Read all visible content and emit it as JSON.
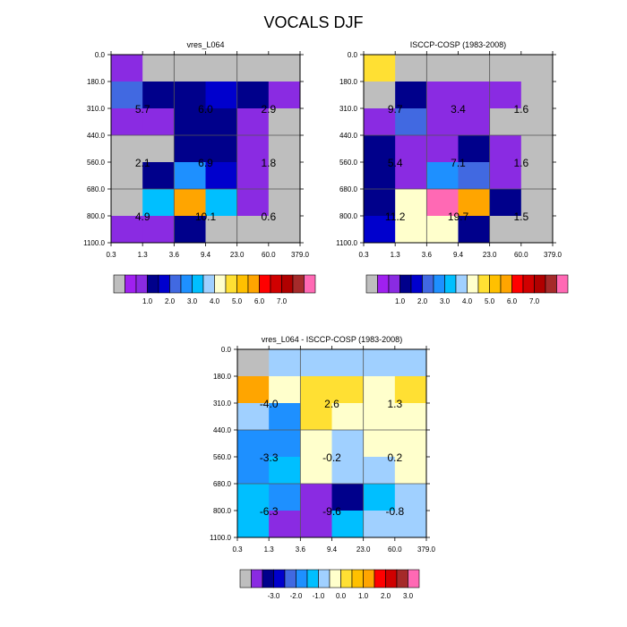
{
  "main_title": "VOCALS DJF",
  "y_ticks": [
    "0.0",
    "180.0",
    "310.0",
    "440.0",
    "560.0",
    "680.0",
    "800.0",
    "1100.0"
  ],
  "x_ticks": [
    "0.3",
    "1.3",
    "3.6",
    "9.4",
    "23.0",
    "60.0",
    "379.0"
  ],
  "palettes": {
    "main": [
      "#bebebe",
      "#a020f0",
      "#8a2be2",
      "#00008b",
      "#0000cd",
      "#4169e1",
      "#1e90ff",
      "#00bfff",
      "#a0d0ff",
      "#ffffcc",
      "#ffe033",
      "#ffc000",
      "#ffa500",
      "#ff0000",
      "#d00000",
      "#b00000",
      "#a52a2a",
      "#ff69b4"
    ],
    "diff": [
      "#bebebe",
      "#8a2be2",
      "#00008b",
      "#0000cd",
      "#4169e1",
      "#1e90ff",
      "#00bfff",
      "#a0d0ff",
      "#ffffcc",
      "#ffe033",
      "#ffc000",
      "#ffa500",
      "#ff0000",
      "#d00000",
      "#a52a2a",
      "#ff69b4"
    ]
  },
  "colorbars": [
    {
      "labels": [
        "1.0",
        "2.0",
        "3.0",
        "4.0",
        "5.0",
        "6.0",
        "7.0"
      ]
    },
    {
      "labels": [
        "1.0",
        "2.0",
        "3.0",
        "4.0",
        "5.0",
        "6.0",
        "7.0"
      ]
    },
    {
      "labels": [
        "-3.0",
        "-2.0",
        "-1.0",
        "0.0",
        "1.0",
        "2.0",
        "3.0"
      ]
    }
  ],
  "chart_data": [
    {
      "type": "heatmap",
      "title": "vres_L064",
      "xlabel": "",
      "ylabel": "",
      "x_edges": [
        "0.3",
        "1.3",
        "3.6",
        "9.4",
        "23.0",
        "60.0",
        "379.0"
      ],
      "y_edges": [
        "0.0",
        "180.0",
        "310.0",
        "440.0",
        "560.0",
        "680.0",
        "800.0",
        "1100.0"
      ],
      "cells": [
        [
          "#8a2be2",
          "#bebebe",
          "#bebebe",
          "#bebebe",
          "#bebebe",
          "#bebebe"
        ],
        [
          "#4169e1",
          "#00008b",
          "#00008b",
          "#0000cd",
          "#00008b",
          "#8a2be2"
        ],
        [
          "#8a2be2",
          "#8a2be2",
          "#00008b",
          "#00008b",
          "#8a2be2",
          "#bebebe"
        ],
        [
          "#bebebe",
          "#bebebe",
          "#00008b",
          "#00008b",
          "#8a2be2",
          "#bebebe"
        ],
        [
          "#bebebe",
          "#00008b",
          "#1e90ff",
          "#0000cd",
          "#8a2be2",
          "#bebebe"
        ],
        [
          "#bebebe",
          "#00bfff",
          "#ffa500",
          "#00bfff",
          "#8a2be2",
          "#bebebe"
        ],
        [
          "#8a2be2",
          "#8a2be2",
          "#00008b",
          "#bebebe",
          "#bebebe",
          "#bebebe"
        ]
      ],
      "box_values": [
        {
          "xbin": 0,
          "ybin": 0,
          "value": 5.7
        },
        {
          "xbin": 1,
          "ybin": 0,
          "value": 6.0
        },
        {
          "xbin": 2,
          "ybin": 0,
          "value": 2.9
        },
        {
          "xbin": 0,
          "ybin": 1,
          "value": 2.1
        },
        {
          "xbin": 1,
          "ybin": 1,
          "value": 6.9
        },
        {
          "xbin": 2,
          "ybin": 1,
          "value": 1.8
        },
        {
          "xbin": 0,
          "ybin": 2,
          "value": 4.9
        },
        {
          "xbin": 1,
          "ybin": 2,
          "value": 10.1
        },
        {
          "xbin": 2,
          "ybin": 2,
          "value": 0.6
        }
      ]
    },
    {
      "type": "heatmap",
      "title": "ISCCP-COSP (1983-2008)",
      "xlabel": "",
      "ylabel": "",
      "x_edges": [
        "0.3",
        "1.3",
        "3.6",
        "9.4",
        "23.0",
        "60.0",
        "379.0"
      ],
      "y_edges": [
        "0.0",
        "180.0",
        "310.0",
        "440.0",
        "560.0",
        "680.0",
        "800.0",
        "1100.0"
      ],
      "cells": [
        [
          "#ffe033",
          "#bebebe",
          "#bebebe",
          "#bebebe",
          "#bebebe",
          "#bebebe"
        ],
        [
          "#bebebe",
          "#00008b",
          "#8a2be2",
          "#8a2be2",
          "#8a2be2",
          "#bebebe"
        ],
        [
          "#8a2be2",
          "#4169e1",
          "#8a2be2",
          "#8a2be2",
          "#bebebe",
          "#bebebe"
        ],
        [
          "#00008b",
          "#8a2be2",
          "#8a2be2",
          "#00008b",
          "#8a2be2",
          "#bebebe"
        ],
        [
          "#00008b",
          "#8a2be2",
          "#1e90ff",
          "#4169e1",
          "#8a2be2",
          "#bebebe"
        ],
        [
          "#00008b",
          "#ffffcc",
          "#ff69b4",
          "#ffa500",
          "#00008b",
          "#bebebe"
        ],
        [
          "#0000cd",
          "#ffffcc",
          "#ffffcc",
          "#00008b",
          "#bebebe",
          "#bebebe"
        ]
      ],
      "box_values": [
        {
          "xbin": 0,
          "ybin": 0,
          "value": 9.7
        },
        {
          "xbin": 1,
          "ybin": 0,
          "value": 3.4
        },
        {
          "xbin": 2,
          "ybin": 0,
          "value": 1.6
        },
        {
          "xbin": 0,
          "ybin": 1,
          "value": 5.4
        },
        {
          "xbin": 1,
          "ybin": 1,
          "value": 7.1
        },
        {
          "xbin": 2,
          "ybin": 1,
          "value": 1.6
        },
        {
          "xbin": 0,
          "ybin": 2,
          "value": 11.2
        },
        {
          "xbin": 1,
          "ybin": 2,
          "value": 19.7
        },
        {
          "xbin": 2,
          "ybin": 2,
          "value": 1.5
        }
      ]
    },
    {
      "type": "heatmap",
      "title": "vres_L064 - ISCCP-COSP (1983-2008)",
      "xlabel": "",
      "ylabel": "",
      "x_edges": [
        "0.3",
        "1.3",
        "3.6",
        "9.4",
        "23.0",
        "60.0",
        "379.0"
      ],
      "y_edges": [
        "0.0",
        "180.0",
        "310.0",
        "440.0",
        "560.0",
        "680.0",
        "800.0",
        "1100.0"
      ],
      "cells": [
        [
          "#bebebe",
          "#a0d0ff",
          "#a0d0ff",
          "#a0d0ff",
          "#a0d0ff",
          "#a0d0ff"
        ],
        [
          "#ffa500",
          "#ffffcc",
          "#ffe033",
          "#ffe033",
          "#ffffcc",
          "#ffe033"
        ],
        [
          "#a0d0ff",
          "#1e90ff",
          "#ffe033",
          "#ffffcc",
          "#ffffcc",
          "#ffffcc"
        ],
        [
          "#1e90ff",
          "#1e90ff",
          "#ffffcc",
          "#a0d0ff",
          "#ffffcc",
          "#ffffcc"
        ],
        [
          "#1e90ff",
          "#00bfff",
          "#ffffcc",
          "#a0d0ff",
          "#a0d0ff",
          "#ffffcc"
        ],
        [
          "#00bfff",
          "#1e90ff",
          "#8a2be2",
          "#00008b",
          "#00bfff",
          "#a0d0ff"
        ],
        [
          "#00bfff",
          "#8a2be2",
          "#8a2be2",
          "#00bfff",
          "#a0d0ff",
          "#a0d0ff"
        ]
      ],
      "box_values": [
        {
          "xbin": 0,
          "ybin": 0,
          "value": -4.0
        },
        {
          "xbin": 1,
          "ybin": 0,
          "value": 2.6
        },
        {
          "xbin": 2,
          "ybin": 0,
          "value": 1.3
        },
        {
          "xbin": 0,
          "ybin": 1,
          "value": -3.3
        },
        {
          "xbin": 1,
          "ybin": 1,
          "value": -0.2
        },
        {
          "xbin": 2,
          "ybin": 1,
          "value": 0.2
        },
        {
          "xbin": 0,
          "ybin": 2,
          "value": -6.3
        },
        {
          "xbin": 1,
          "ybin": 2,
          "value": -9.6
        },
        {
          "xbin": 2,
          "ybin": 2,
          "value": -0.8
        }
      ]
    }
  ]
}
